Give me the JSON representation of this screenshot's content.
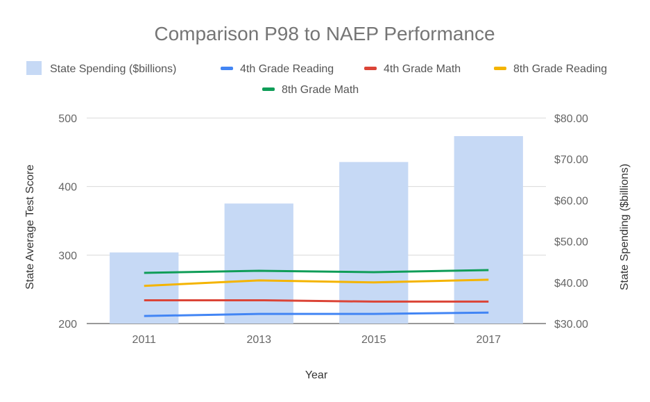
{
  "chart_data": {
    "type": "bar",
    "title": "Comparison P98 to NAEP Performance",
    "xlabel": "Year",
    "ylabel": "State Average Test Score",
    "y2label": "State Spending ($billions)",
    "categories": [
      "2011",
      "2013",
      "2015",
      "2017"
    ],
    "ylim": [
      200,
      500
    ],
    "yticks": [
      "200",
      "300",
      "400",
      "500"
    ],
    "y2lim": [
      30,
      80
    ],
    "y2ticks": [
      "$30.00",
      "$40.00",
      "$50.00",
      "$60.00",
      "$70.00",
      "$80.00"
    ],
    "grid": true,
    "legend_position": "top",
    "series": [
      {
        "name": "State Spending ($billions)",
        "kind": "bar",
        "axis": "right",
        "color": "#c6d9f5",
        "values": [
          47.3,
          59.2,
          69.3,
          75.6
        ]
      },
      {
        "name": "4th Grade Reading",
        "kind": "line",
        "axis": "left",
        "color": "#4285f4",
        "values": [
          211,
          214,
          214,
          216
        ]
      },
      {
        "name": "4th Grade Math",
        "kind": "line",
        "axis": "left",
        "color": "#db4437",
        "values": [
          234,
          234,
          232,
          232
        ]
      },
      {
        "name": "8th Grade Reading",
        "kind": "line",
        "axis": "left",
        "color": "#f4b400",
        "values": [
          255,
          263,
          260,
          264
        ]
      },
      {
        "name": "8th Grade Math",
        "kind": "line",
        "axis": "left",
        "color": "#0f9d58",
        "values": [
          274,
          277,
          275,
          278
        ]
      }
    ]
  }
}
